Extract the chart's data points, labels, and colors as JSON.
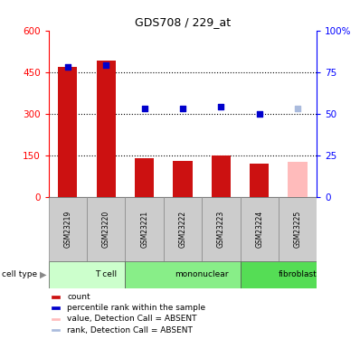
{
  "title": "GDS708 / 229_at",
  "samples": [
    "GSM23219",
    "GSM23220",
    "GSM23221",
    "GSM23222",
    "GSM23223",
    "GSM23224",
    "GSM23225"
  ],
  "counts": [
    470,
    490,
    140,
    130,
    148,
    118,
    125
  ],
  "ranks": [
    78,
    79,
    53,
    53,
    54,
    50,
    53
  ],
  "absent": [
    false,
    false,
    false,
    false,
    false,
    false,
    true
  ],
  "cell_types": [
    {
      "label": "T cell",
      "start": 0,
      "end": 2,
      "color": "#ccffcc"
    },
    {
      "label": "mononuclear",
      "start": 2,
      "end": 5,
      "color": "#88ee88"
    },
    {
      "label": "fibroblast",
      "start": 5,
      "end": 7,
      "color": "#55dd55"
    }
  ],
  "bar_color_present": "#cc1111",
  "bar_color_absent": "#ffbbbb",
  "rank_color_present": "#0000cc",
  "rank_color_absent": "#aabbdd",
  "ylim_left": [
    0,
    600
  ],
  "ylim_right": [
    0,
    100
  ],
  "yticks_left": [
    0,
    150,
    300,
    450,
    600
  ],
  "yticks_right": [
    0,
    25,
    50,
    75,
    100
  ],
  "ytick_labels_right": [
    "0",
    "25",
    "50",
    "75",
    "100%"
  ],
  "hlines": [
    150,
    300,
    450
  ],
  "bar_width": 0.5,
  "legend_items": [
    {
      "color": "#cc1111",
      "label": "count"
    },
    {
      "color": "#0000cc",
      "label": "percentile rank within the sample"
    },
    {
      "color": "#ffbbbb",
      "label": "value, Detection Call = ABSENT"
    },
    {
      "color": "#aabbdd",
      "label": "rank, Detection Call = ABSENT"
    }
  ],
  "cell_type_label": "cell type",
  "sample_bg_color": "#cccccc",
  "absent_rank_scale": 53
}
